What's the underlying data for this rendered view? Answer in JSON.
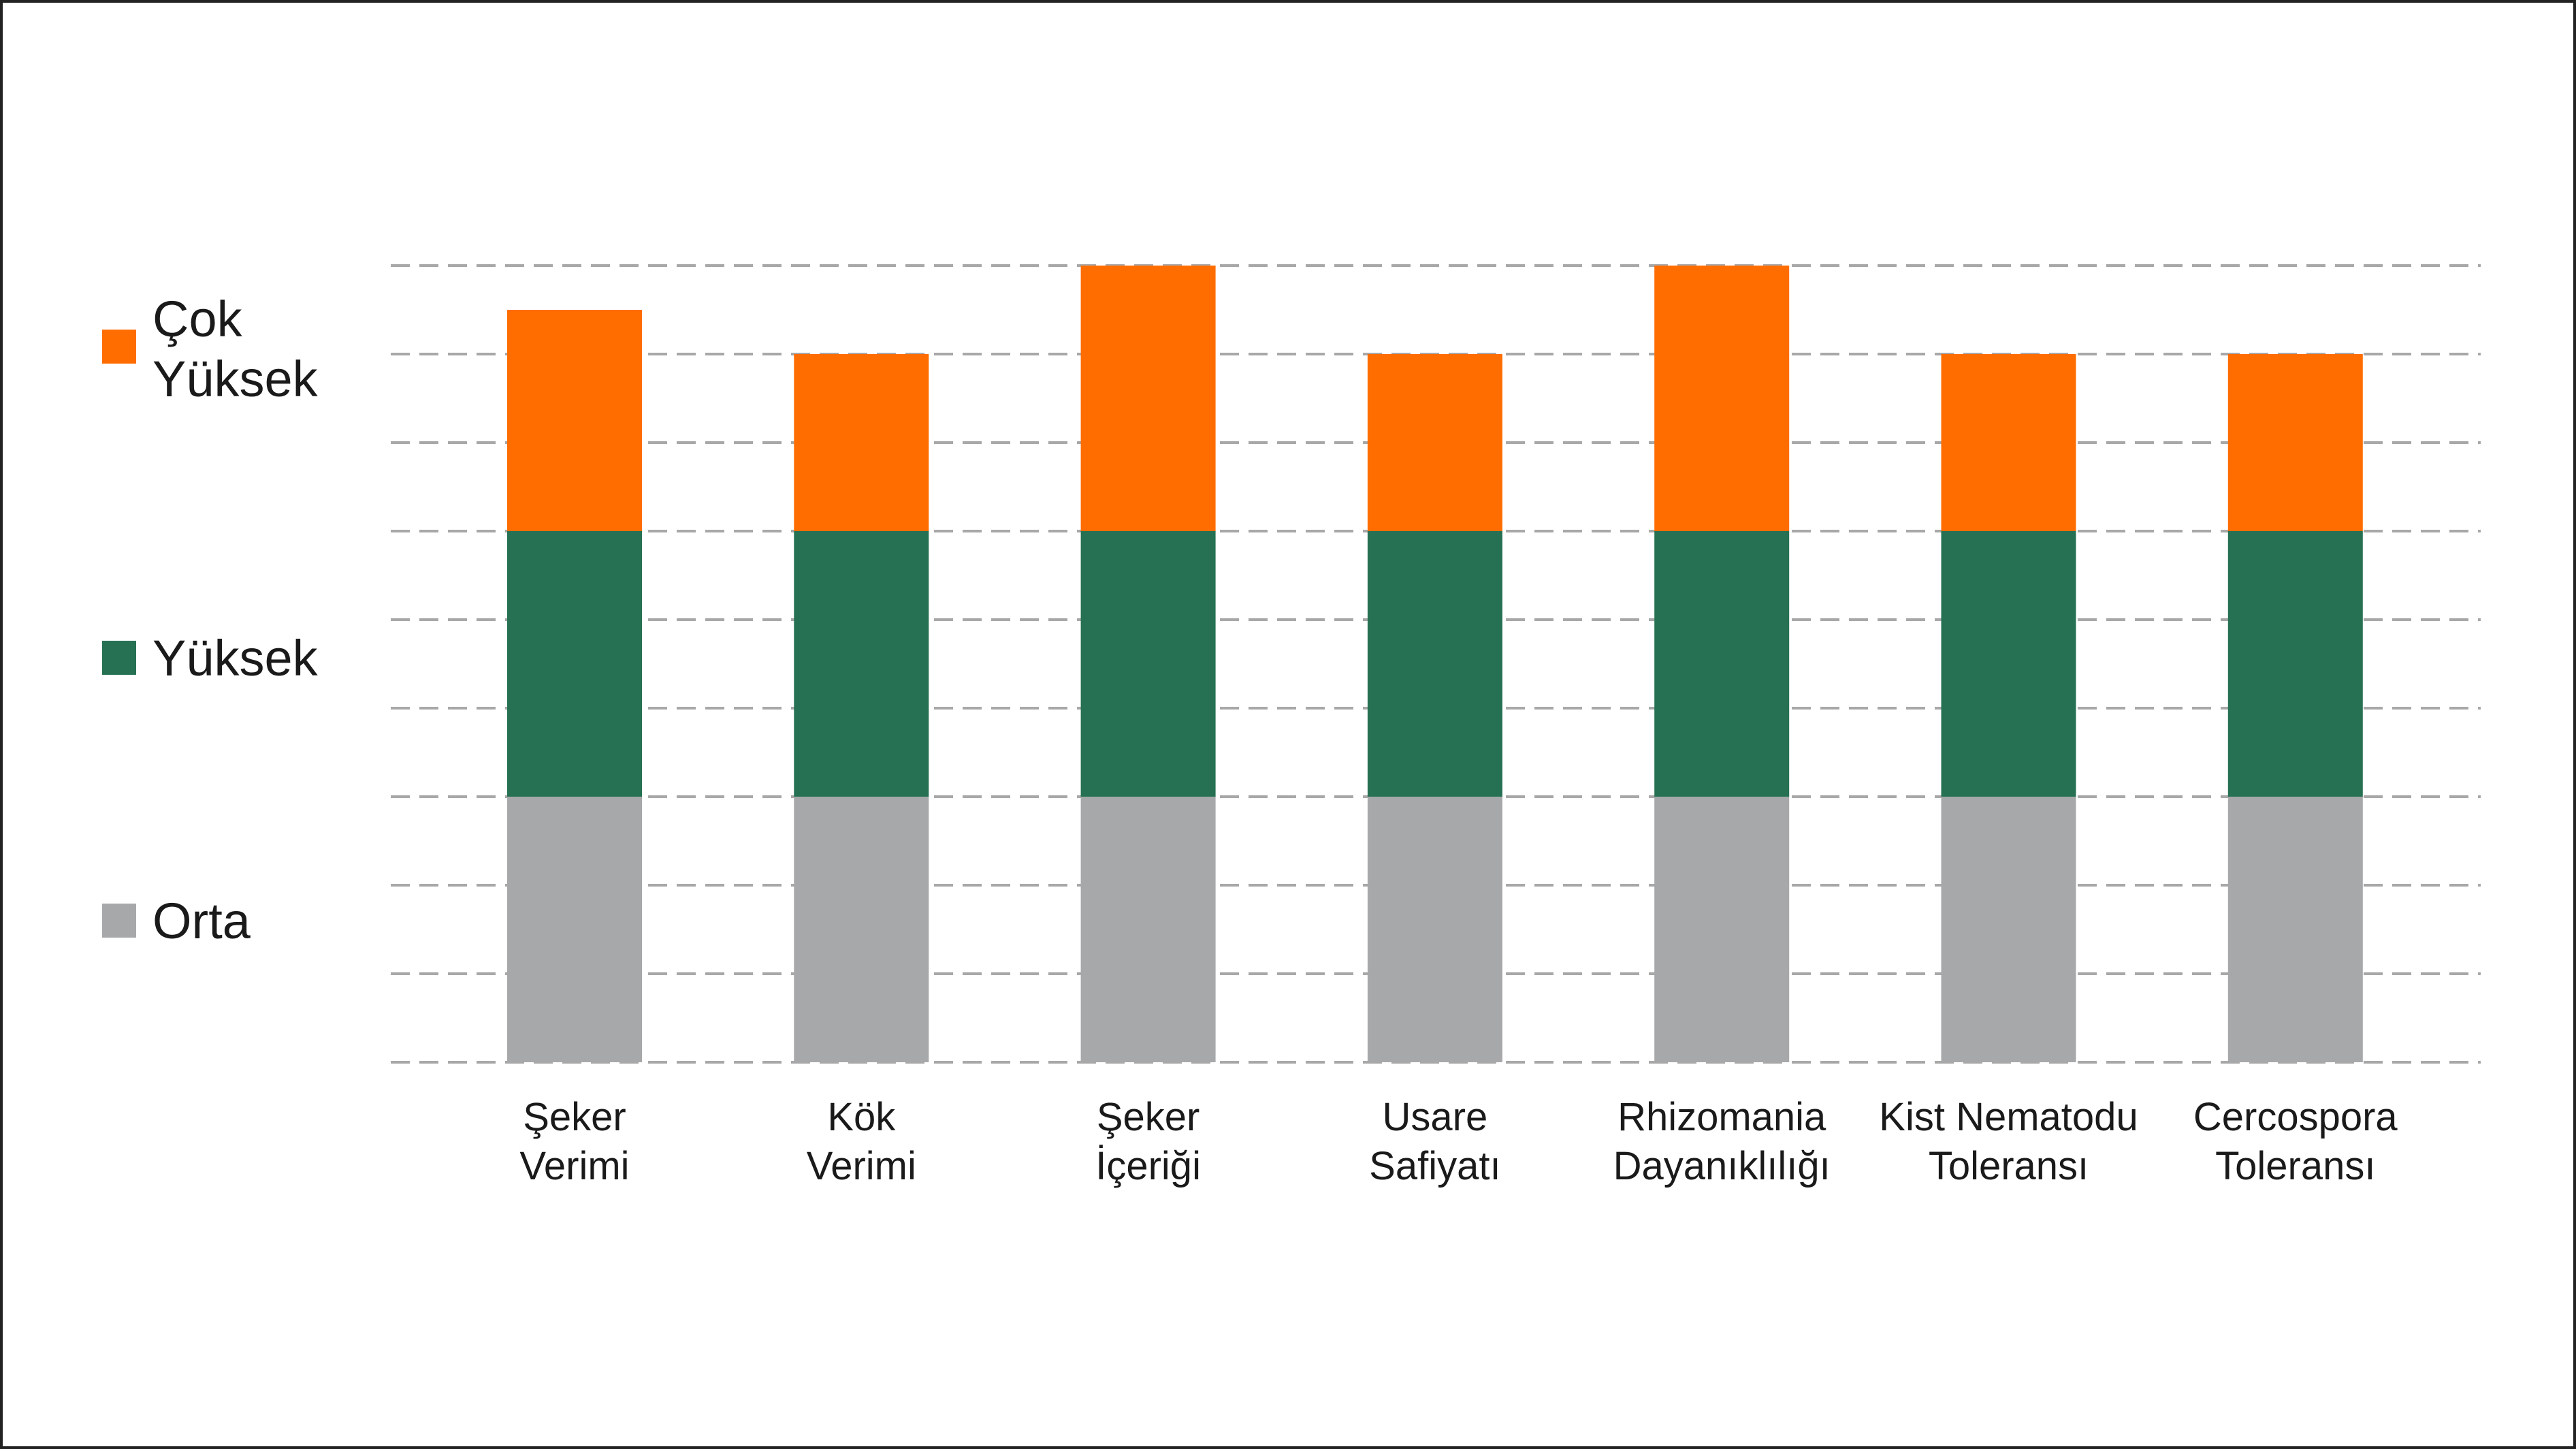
{
  "chart_data": {
    "type": "bar",
    "stacked": true,
    "categories": [
      [
        "Şeker",
        "Verimi"
      ],
      [
        "Kök",
        "Verimi"
      ],
      [
        "Şeker",
        "İçeriği"
      ],
      [
        "Usare",
        "Safiyatı"
      ],
      [
        "Rhizomania",
        "Dayanıklılığı"
      ],
      [
        "Kist Nematodu",
        "Toleransı"
      ],
      [
        "Cercospora",
        "Toleransı"
      ]
    ],
    "series": [
      {
        "name": "Orta",
        "color": "#a7a8aa",
        "values": [
          3,
          3,
          3,
          3,
          3,
          3,
          3
        ]
      },
      {
        "name": "Yüksek",
        "color": "#267153",
        "values": [
          3,
          3,
          3,
          3,
          3,
          3,
          3
        ]
      },
      {
        "name": "Çok Yüksek",
        "color": "#ff6d00",
        "values": [
          2.5,
          2,
          3,
          2,
          3,
          2,
          2
        ]
      }
    ],
    "ylim": [
      0,
      9
    ],
    "grid": true,
    "legend": "left"
  },
  "legend": {
    "items": [
      {
        "lines": [
          "Çok",
          "Yüksek"
        ],
        "color": "#ff6d00"
      },
      {
        "lines": [
          "Yüksek"
        ],
        "color": "#267153"
      },
      {
        "lines": [
          "Orta"
        ],
        "color": "#a7a8aa"
      }
    ]
  }
}
